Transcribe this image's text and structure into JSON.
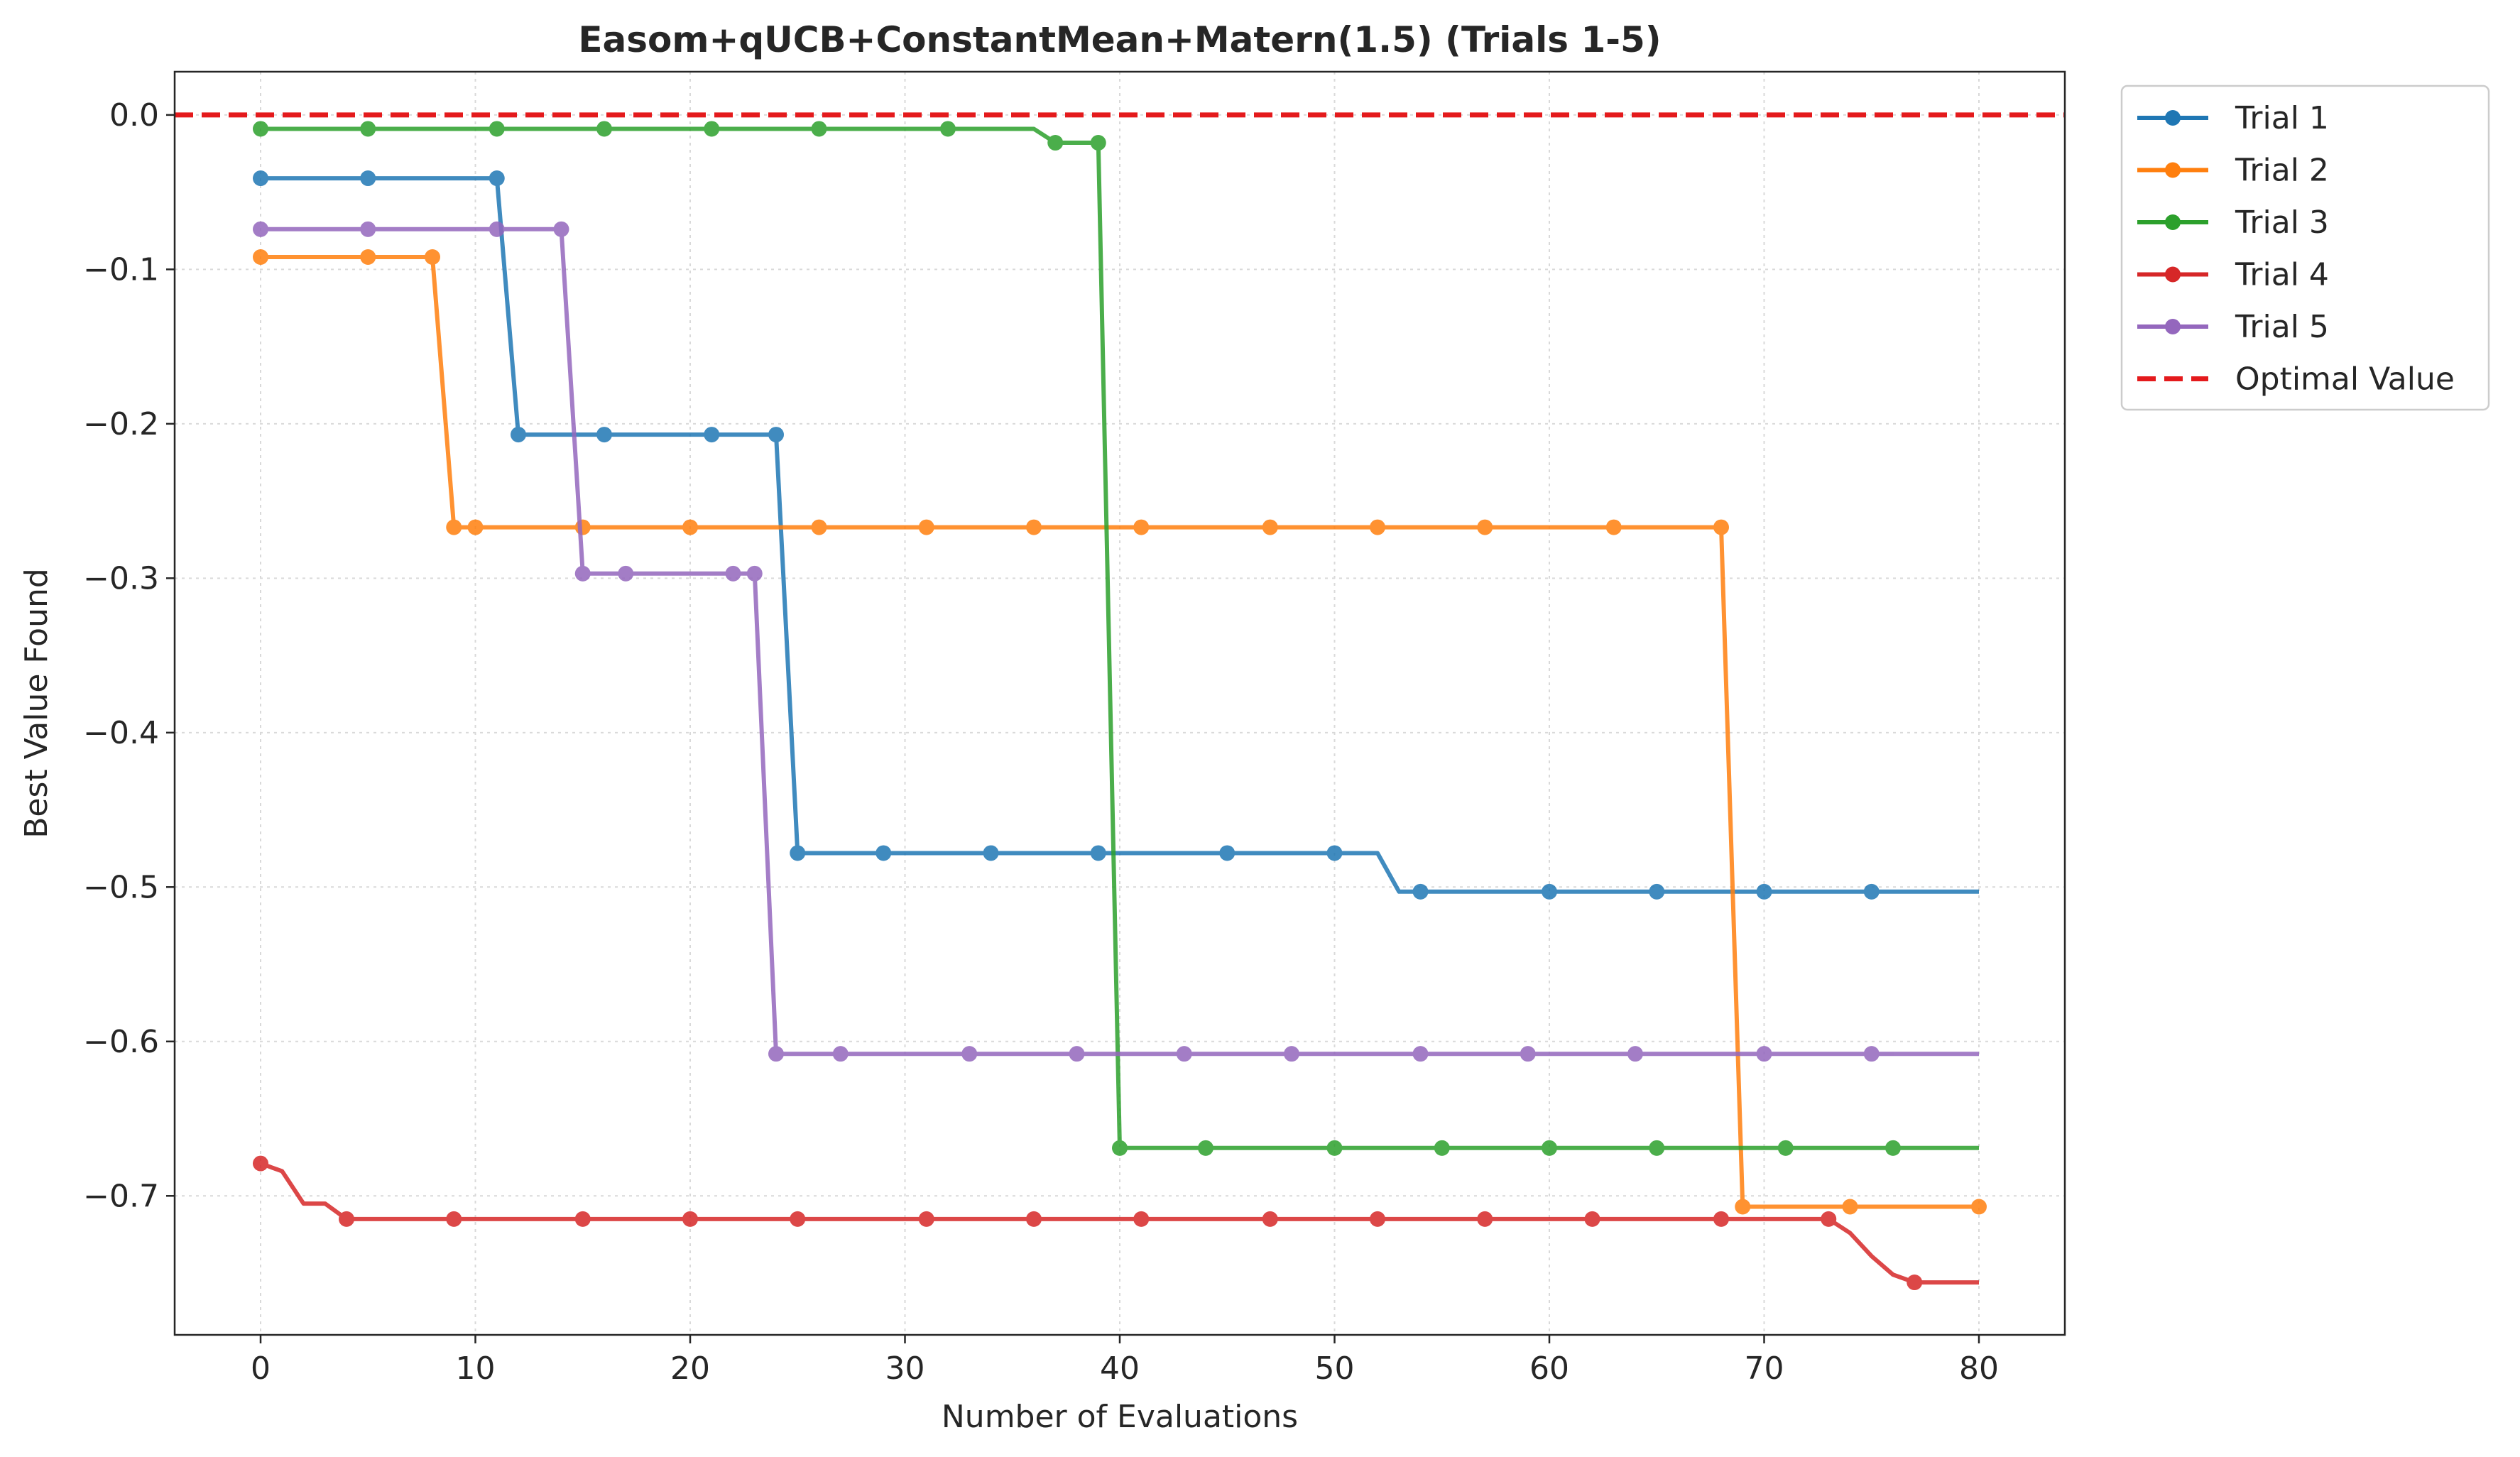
{
  "chart_data": {
    "type": "line",
    "title": "Easom+qUCB+ConstantMean+Matern(1.5) (Trials 1-5)",
    "xlabel": "Number of Evaluations",
    "ylabel": "Best Value Found",
    "xlim": [
      -4,
      84
    ],
    "ylim": [
      -0.79,
      0.028
    ],
    "xticks": [
      0,
      10,
      20,
      30,
      40,
      50,
      60,
      70,
      80
    ],
    "xtick_labels": [
      "0",
      "10",
      "20",
      "30",
      "40",
      "50",
      "60",
      "70",
      "80"
    ],
    "yticks": [
      0.0,
      -0.1,
      -0.2,
      -0.3,
      -0.4,
      -0.5,
      -0.6,
      -0.7
    ],
    "ytick_labels": [
      "0.0",
      "−0.1",
      "−0.2",
      "−0.3",
      "−0.4",
      "−0.5",
      "−0.6",
      "−0.7"
    ],
    "grid": true,
    "legend_position": "outside-top-right",
    "optimal_line": {
      "name": "Optimal Value",
      "y": 0.0,
      "color": "#e41a1c",
      "style": "dashed"
    },
    "series": [
      {
        "name": "Trial 1",
        "color": "#1f77b4",
        "line": [
          [
            0,
            -0.041
          ],
          [
            11,
            -0.041
          ],
          [
            12,
            -0.207
          ],
          [
            24,
            -0.207
          ],
          [
            25,
            -0.478
          ],
          [
            52,
            -0.478
          ],
          [
            53,
            -0.503
          ],
          [
            80,
            -0.503
          ]
        ],
        "markers": [
          [
            0,
            -0.041
          ],
          [
            5,
            -0.041
          ],
          [
            11,
            -0.041
          ],
          [
            12,
            -0.207
          ],
          [
            16,
            -0.207
          ],
          [
            21,
            -0.207
          ],
          [
            24,
            -0.207
          ],
          [
            25,
            -0.478
          ],
          [
            29,
            -0.478
          ],
          [
            34,
            -0.478
          ],
          [
            39,
            -0.478
          ],
          [
            45,
            -0.478
          ],
          [
            50,
            -0.478
          ],
          [
            54,
            -0.503
          ],
          [
            60,
            -0.503
          ],
          [
            65,
            -0.503
          ],
          [
            70,
            -0.503
          ],
          [
            75,
            -0.503
          ]
        ]
      },
      {
        "name": "Trial 2",
        "color": "#ff7f0e",
        "line": [
          [
            0,
            -0.092
          ],
          [
            8,
            -0.092
          ],
          [
            9,
            -0.267
          ],
          [
            68,
            -0.267
          ],
          [
            69,
            -0.707
          ],
          [
            80,
            -0.707
          ]
        ],
        "markers": [
          [
            0,
            -0.092
          ],
          [
            5,
            -0.092
          ],
          [
            8,
            -0.092
          ],
          [
            9,
            -0.267
          ],
          [
            10,
            -0.267
          ],
          [
            15,
            -0.267
          ],
          [
            20,
            -0.267
          ],
          [
            26,
            -0.267
          ],
          [
            31,
            -0.267
          ],
          [
            36,
            -0.267
          ],
          [
            41,
            -0.267
          ],
          [
            47,
            -0.267
          ],
          [
            52,
            -0.267
          ],
          [
            57,
            -0.267
          ],
          [
            63,
            -0.267
          ],
          [
            68,
            -0.267
          ],
          [
            69,
            -0.707
          ],
          [
            74,
            -0.707
          ],
          [
            80,
            -0.707
          ]
        ]
      },
      {
        "name": "Trial 3",
        "color": "#2ca02c",
        "line": [
          [
            0,
            -0.009
          ],
          [
            36,
            -0.009
          ],
          [
            37,
            -0.018
          ],
          [
            39,
            -0.018
          ],
          [
            40,
            -0.669
          ],
          [
            80,
            -0.669
          ]
        ],
        "markers": [
          [
            0,
            -0.009
          ],
          [
            5,
            -0.009
          ],
          [
            11,
            -0.009
          ],
          [
            16,
            -0.009
          ],
          [
            21,
            -0.009
          ],
          [
            26,
            -0.009
          ],
          [
            32,
            -0.009
          ],
          [
            37,
            -0.018
          ],
          [
            39,
            -0.018
          ],
          [
            40,
            -0.669
          ],
          [
            44,
            -0.669
          ],
          [
            50,
            -0.669
          ],
          [
            55,
            -0.669
          ],
          [
            60,
            -0.669
          ],
          [
            65,
            -0.669
          ],
          [
            71,
            -0.669
          ],
          [
            76,
            -0.669
          ]
        ]
      },
      {
        "name": "Trial 4",
        "color": "#d62728",
        "line": [
          [
            0,
            -0.679
          ],
          [
            1,
            -0.684
          ],
          [
            2,
            -0.705
          ],
          [
            3,
            -0.705
          ],
          [
            4,
            -0.715
          ],
          [
            73,
            -0.715
          ],
          [
            74,
            -0.724
          ],
          [
            75,
            -0.739
          ],
          [
            76,
            -0.751
          ],
          [
            77,
            -0.756
          ],
          [
            80,
            -0.756
          ]
        ],
        "markers": [
          [
            0,
            -0.679
          ],
          [
            4,
            -0.715
          ],
          [
            9,
            -0.715
          ],
          [
            15,
            -0.715
          ],
          [
            20,
            -0.715
          ],
          [
            25,
            -0.715
          ],
          [
            31,
            -0.715
          ],
          [
            36,
            -0.715
          ],
          [
            41,
            -0.715
          ],
          [
            47,
            -0.715
          ],
          [
            52,
            -0.715
          ],
          [
            57,
            -0.715
          ],
          [
            62,
            -0.715
          ],
          [
            68,
            -0.715
          ],
          [
            73,
            -0.715
          ],
          [
            77,
            -0.756
          ]
        ]
      },
      {
        "name": "Trial 5",
        "color": "#9467bd",
        "line": [
          [
            0,
            -0.074
          ],
          [
            14,
            -0.074
          ],
          [
            15,
            -0.297
          ],
          [
            23,
            -0.297
          ],
          [
            24,
            -0.608
          ],
          [
            80,
            -0.608
          ]
        ],
        "markers": [
          [
            0,
            -0.074
          ],
          [
            5,
            -0.074
          ],
          [
            11,
            -0.074
          ],
          [
            14,
            -0.074
          ],
          [
            15,
            -0.297
          ],
          [
            17,
            -0.297
          ],
          [
            22,
            -0.297
          ],
          [
            23,
            -0.297
          ],
          [
            24,
            -0.608
          ],
          [
            27,
            -0.608
          ],
          [
            33,
            -0.608
          ],
          [
            38,
            -0.608
          ],
          [
            43,
            -0.608
          ],
          [
            48,
            -0.608
          ],
          [
            54,
            -0.608
          ],
          [
            59,
            -0.608
          ],
          [
            64,
            -0.608
          ],
          [
            70,
            -0.608
          ],
          [
            75,
            -0.608
          ]
        ]
      }
    ]
  }
}
